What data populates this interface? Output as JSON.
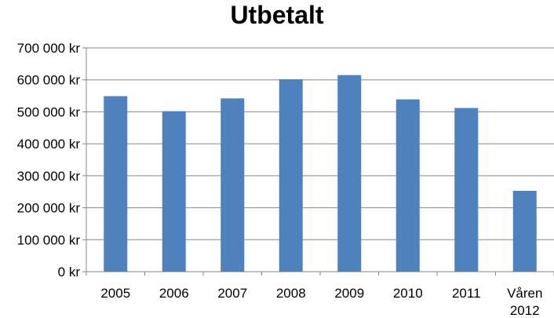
{
  "chart_data": {
    "type": "bar",
    "title": "Utbetalt",
    "xlabel": "",
    "ylabel": "",
    "categories": [
      "2005",
      "2006",
      "2007",
      "2008",
      "2009",
      "2010",
      "2011",
      "Våren 2012"
    ],
    "values": [
      549000,
      502000,
      542000,
      602000,
      615000,
      539000,
      512000,
      253000
    ],
    "ylim": [
      0,
      700000
    ],
    "y_ticks": [
      0,
      100000,
      200000,
      300000,
      400000,
      500000,
      600000,
      700000
    ],
    "y_tick_labels": [
      "0 kr",
      "100 000 kr",
      "200 000 kr",
      "300 000 kr",
      "400 000 kr",
      "500 000 kr",
      "600 000 kr",
      "700 000 kr"
    ],
    "grid": true,
    "legend": "none",
    "bar_color": "#4f81bd"
  }
}
